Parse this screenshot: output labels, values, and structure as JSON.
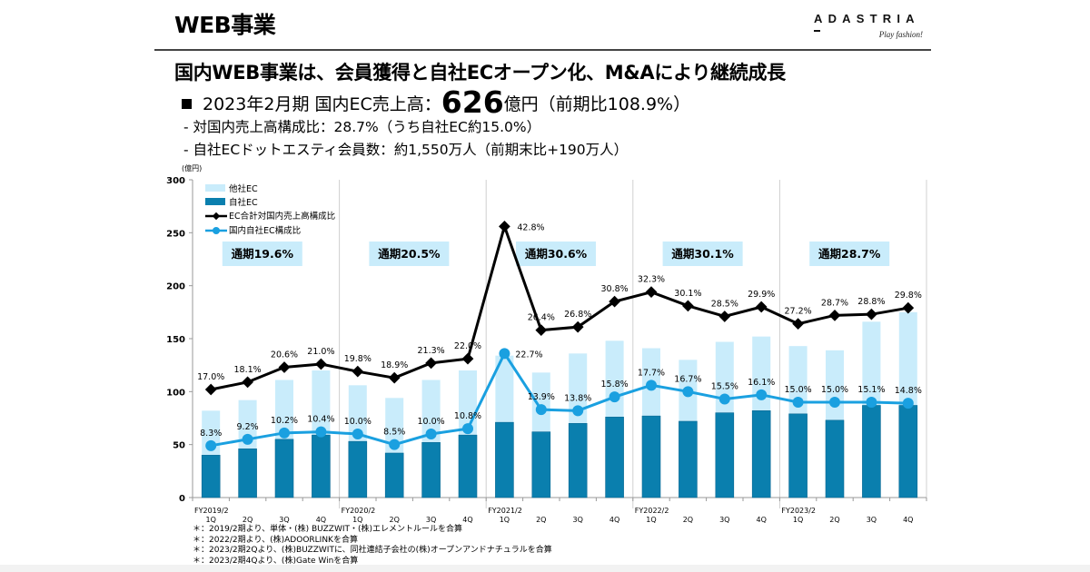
{
  "header": {
    "title": "WEB事業",
    "logo_name": "ADASTRIA",
    "logo_tagline": "Play fashion!"
  },
  "headline": "国内WEB事業は、会員獲得と自社ECオープン化、M&Aにより継続成長",
  "summary": {
    "prefix": "2023年2月期 国内EC売上高：",
    "value": "626",
    "suffix": "億円（前期比108.9%）",
    "lines": [
      "- 対国内売上高構成比：28.7%（うち自社EC約15.0%）",
      "- 自社ECドットエスティ会員数：約1,550万人（前期末比+190万人）"
    ]
  },
  "footnotes": [
    "＊：2019/2期より、単体・(株) BUZZWIT・(株)エレメントルールを合算",
    "＊：2022/2期より、(株)ADOORLINKを合算",
    "＊：2023/2期2Qより、(株)BUZZWITに、同社連結子会社の(株)オープンアンドナチュラルを合算",
    "＊：2023/2期4Qより、(株)Gate Winを合算"
  ],
  "chart_data": {
    "type": "bar",
    "stacked": true,
    "unit_label": "(億円)",
    "ylim": [
      0,
      300
    ],
    "yticks": [
      0,
      50,
      100,
      150,
      200,
      250,
      300
    ],
    "grid": false,
    "legend_position": "top-left",
    "fiscal_years": [
      "FY2019/2",
      "FY2020/2",
      "FY2021/2",
      "FY2022/2",
      "FY2023/2"
    ],
    "categories": [
      "1Q",
      "2Q",
      "3Q",
      "4Q",
      "1Q",
      "2Q",
      "3Q",
      "4Q",
      "1Q",
      "2Q",
      "3Q",
      "4Q",
      "1Q",
      "2Q",
      "3Q",
      "4Q",
      "1Q",
      "2Q",
      "3Q",
      "4Q"
    ],
    "series": [
      {
        "name": "自社EC",
        "kind": "bar",
        "color": "#0a7fae",
        "values": [
          40,
          46,
          55,
          59,
          53,
          42,
          52,
          59,
          71,
          62,
          70,
          76,
          77,
          72,
          80,
          82,
          79,
          73,
          87,
          87
        ]
      },
      {
        "name": "他社EC",
        "kind": "bar",
        "color": "#c9ecfb",
        "values": [
          42,
          46,
          56,
          61,
          53,
          52,
          59,
          61,
          63,
          56,
          66,
          72,
          64,
          58,
          67,
          70,
          64,
          66,
          79,
          88
        ]
      },
      {
        "name": "EC合計対国内売上高構成比",
        "kind": "line",
        "color": "#000000",
        "plot_y": [
          102,
          109,
          123,
          126,
          119,
          113,
          127,
          131,
          256,
          158,
          161,
          185,
          194,
          181,
          171,
          180,
          164,
          172,
          173,
          179
        ],
        "labels": [
          "17.0%",
          "18.1%",
          "20.6%",
          "21.0%",
          "19.8%",
          "18.9%",
          "21.3%",
          "22.0%",
          "42.8%",
          "26.4%",
          "26.8%",
          "30.8%",
          "32.3%",
          "30.1%",
          "28.5%",
          "29.9%",
          "27.2%",
          "28.7%",
          "28.8%",
          "29.8%"
        ]
      },
      {
        "name": "国内自社EC構成比",
        "kind": "line",
        "color": "#1aa0e0",
        "plot_y": [
          49,
          55,
          61,
          62,
          60,
          50,
          60,
          65,
          136,
          83,
          82,
          95,
          106,
          100,
          93,
          97,
          90,
          90,
          90,
          89
        ],
        "labels": [
          "8.3%",
          "9.2%",
          "10.2%",
          "10.4%",
          "10.0%",
          "8.5%",
          "10.0%",
          "10.8%",
          "22.7%",
          "13.9%",
          "13.8%",
          "15.8%",
          "17.7%",
          "16.7%",
          "15.5%",
          "16.1%",
          "15.0%",
          "15.0%",
          "15.1%",
          "14.8%"
        ]
      }
    ],
    "annual_annotations": [
      "通期19.6%",
      "通期20.5%",
      "通期30.6%",
      "通期30.1%",
      "通期28.7%"
    ]
  }
}
